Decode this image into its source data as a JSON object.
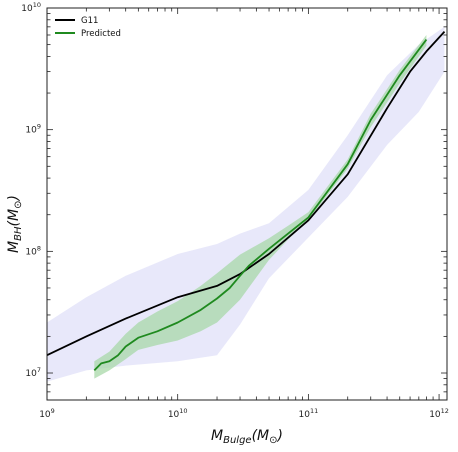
{
  "chart_data": {
    "type": "line",
    "title": "",
    "xlabel": "M_Bulge(M_⊙)",
    "ylabel": "M_BH(M_⊙)",
    "xscale": "log",
    "yscale": "log",
    "xlim": [
      1000000000.0,
      1150000000000.0
    ],
    "ylim": [
      6000000.0,
      10000000000.0
    ],
    "grid": false,
    "legend": {
      "placement": "top-left"
    },
    "x_ticks": [
      {
        "value": 1000000000.0,
        "base": "10",
        "exp": "9"
      },
      {
        "value": 10000000000.0,
        "base": "10",
        "exp": "10"
      },
      {
        "value": 100000000000.0,
        "base": "10",
        "exp": "11"
      },
      {
        "value": 1000000000000.0,
        "base": "10",
        "exp": "12"
      }
    ],
    "y_ticks": [
      {
        "value": 10000000.0,
        "base": "10",
        "exp": "7"
      },
      {
        "value": 100000000.0,
        "base": "10",
        "exp": "8"
      },
      {
        "value": 1000000000.0,
        "base": "10",
        "exp": "9"
      },
      {
        "value": 10000000000.0,
        "base": "10",
        "exp": "10"
      }
    ],
    "series": [
      {
        "name": "G11",
        "color": "#000000",
        "x": [
          1000000000.0,
          2000000000.0,
          4000000000.0,
          10000000000.0,
          20000000000.0,
          30000000000.0,
          50000000000.0,
          100000000000.0,
          200000000000.0,
          400000000000.0,
          600000000000.0,
          800000000000.0,
          1100000000000.0
        ],
        "y": [
          14000000.0,
          20000000.0,
          28000000.0,
          42000000.0,
          52000000.0,
          65000000.0,
          95000000.0,
          180000000.0,
          430000000.0,
          1500000000.0,
          3000000000.0,
          4400000000.0,
          6400000000.0
        ],
        "band": {
          "color": "#e6e6fa",
          "x": [
            1000000000.0,
            2000000000.0,
            4000000000.0,
            10000000000.0,
            20000000000.0,
            30000000000.0,
            50000000000.0,
            100000000000.0,
            200000000000.0,
            400000000000.0,
            700000000000.0,
            1100000000000.0
          ],
          "lower": [
            8500000.0,
            10500000.0,
            11500000.0,
            12500000.0,
            14000000.0,
            25000000.0,
            60000000.0,
            130000000.0,
            280000000.0,
            750000000.0,
            1400000000.0,
            3000000000.0
          ],
          "upper": [
            26000000.0,
            42000000.0,
            63000000.0,
            95000000.0,
            115000000.0,
            140000000.0,
            170000000.0,
            320000000.0,
            900000000.0,
            2800000000.0,
            5000000000.0,
            7000000000.0
          ]
        }
      },
      {
        "name": "Predicted",
        "color": "#1f8a1f",
        "x": [
          2300000000.0,
          2600000000.0,
          3000000000.0,
          3500000000.0,
          4000000000.0,
          5000000000.0,
          7000000000.0,
          10000000000.0,
          15000000000.0,
          20000000000.0,
          25000000000.0,
          30000000000.0,
          35000000000.0,
          50000000000.0,
          70000000000.0,
          100000000000.0,
          200000000000.0,
          300000000000.0,
          500000000000.0,
          800000000000.0
        ],
        "y": [
          10500000.0,
          12000000.0,
          12500000.0,
          14000000.0,
          16500000.0,
          19500000.0,
          22000000.0,
          26000000.0,
          33000000.0,
          41000000.0,
          50000000.0,
          63000000.0,
          76000000.0,
          105000000.0,
          140000000.0,
          190000000.0,
          520000000.0,
          1200000000.0,
          2800000000.0,
          5500000000.0
        ],
        "band": {
          "color": "#a8d8a8",
          "x": [
            2300000000.0,
            3000000000.0,
            4000000000.0,
            5000000000.0,
            7000000000.0,
            10000000000.0,
            15000000000.0,
            20000000000.0,
            30000000000.0,
            50000000000.0,
            70000000000.0,
            100000000000.0,
            200000000000.0,
            300000000000.0,
            500000000000.0,
            800000000000.0
          ],
          "lower": [
            9000000.0,
            10500000.0,
            13000000.0,
            15500000.0,
            17000000.0,
            18500000.0,
            22000000.0,
            26000000.0,
            40000000.0,
            85000000.0,
            125000000.0,
            180000000.0,
            480000000.0,
            1050000000.0,
            2400000000.0,
            4900000000.0
          ],
          "upper": [
            12500000.0,
            15000000.0,
            21000000.0,
            26000000.0,
            32000000.0,
            39000000.0,
            52000000.0,
            66000000.0,
            94000000.0,
            128000000.0,
            162000000.0,
            210000000.0,
            570000000.0,
            1350000000.0,
            3100000000.0,
            6000000000.0
          ]
        }
      }
    ]
  }
}
